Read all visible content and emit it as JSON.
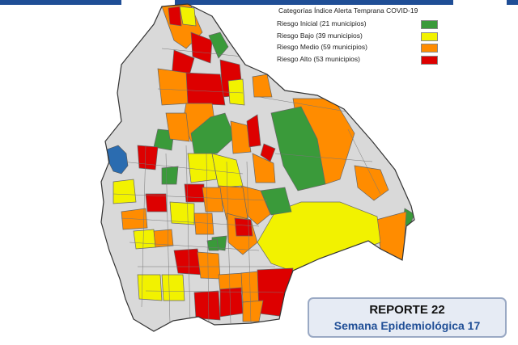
{
  "legend": {
    "title": "Categorías Índice Alerta Temprana COVID-19",
    "items": [
      {
        "label": "Riesgo Inicial (21 municipios)",
        "color": "#3a9a3a"
      },
      {
        "label": "Riesgo Bajo (39 municipios)",
        "color": "#f2f200"
      },
      {
        "label": "Riesgo Medio (59 municipios)",
        "color": "#ff8c00"
      },
      {
        "label": "Riesgo Alto (53 municipios)",
        "color": "#dd0000"
      }
    ]
  },
  "report": {
    "title": "REPORTE 22",
    "subtitle": "Semana Epidemiológica 17"
  },
  "colors": {
    "no_data": "#d9d9d9",
    "lake": "#2b6cb0",
    "border": "#666666",
    "banner": "#1f4e96"
  }
}
